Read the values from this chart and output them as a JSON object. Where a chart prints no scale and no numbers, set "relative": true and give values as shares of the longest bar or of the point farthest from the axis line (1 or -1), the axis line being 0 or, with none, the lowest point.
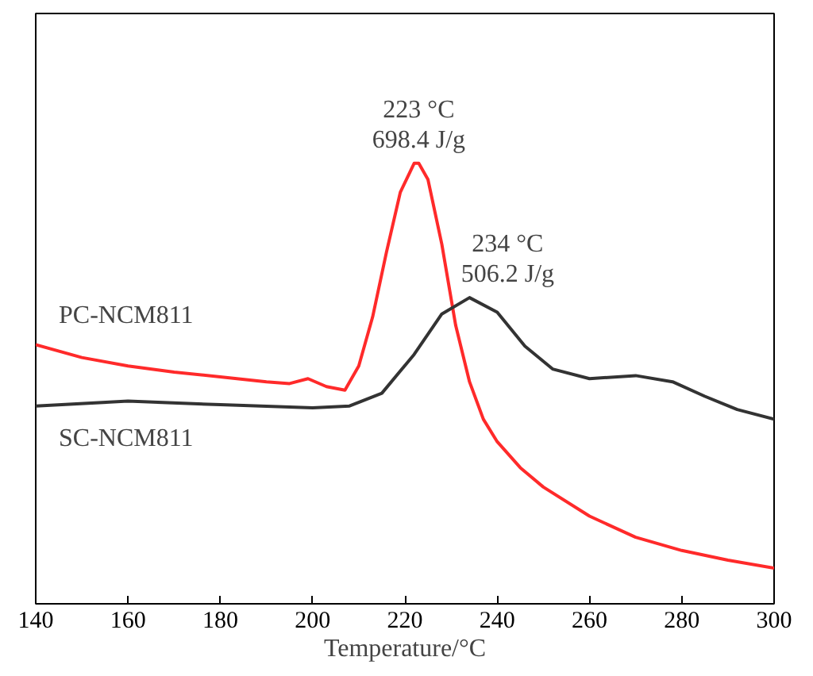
{
  "chart_data": {
    "type": "line",
    "relative": true,
    "xlabel": "Temperature/°C",
    "xlim": [
      140,
      300
    ],
    "xticks": [
      140,
      160,
      180,
      200,
      220,
      240,
      260,
      280,
      300
    ],
    "tick_labels": "x",
    "legend": false,
    "grid": false,
    "series": [
      {
        "name": "PC-NCM811",
        "color": "#ff2a2a",
        "x": [
          140,
          150,
          160,
          170,
          180,
          190,
          195,
          199,
          203,
          207,
          210,
          213,
          216,
          219,
          222,
          223,
          225,
          228,
          231,
          234,
          237,
          240,
          245,
          250,
          260,
          270,
          280,
          290,
          300
        ],
        "values": [
          0.588,
          0.559,
          0.54,
          0.526,
          0.515,
          0.504,
          0.5,
          0.511,
          0.493,
          0.485,
          0.54,
          0.651,
          0.798,
          0.934,
          1.0,
          1.0,
          0.963,
          0.816,
          0.632,
          0.504,
          0.419,
          0.368,
          0.309,
          0.265,
          0.199,
          0.151,
          0.121,
          0.099,
          0.081
        ]
      },
      {
        "name": "SC-NCM811",
        "color": "#333333",
        "x": [
          140,
          160,
          180,
          200,
          208,
          215,
          222,
          228,
          234,
          240,
          246,
          252,
          260,
          270,
          278,
          285,
          292,
          300
        ],
        "values": [
          0.449,
          0.46,
          0.452,
          0.445,
          0.449,
          0.478,
          0.566,
          0.658,
          0.695,
          0.662,
          0.585,
          0.533,
          0.511,
          0.518,
          0.504,
          0.471,
          0.441,
          0.419
        ]
      }
    ],
    "annotations": [
      {
        "text": "223 °C\n698.4 J/g",
        "x": 223,
        "y": 1.0
      },
      {
        "text": "234 °C\n506.2 J/g",
        "x": 234,
        "y": 0.695
      }
    ]
  }
}
